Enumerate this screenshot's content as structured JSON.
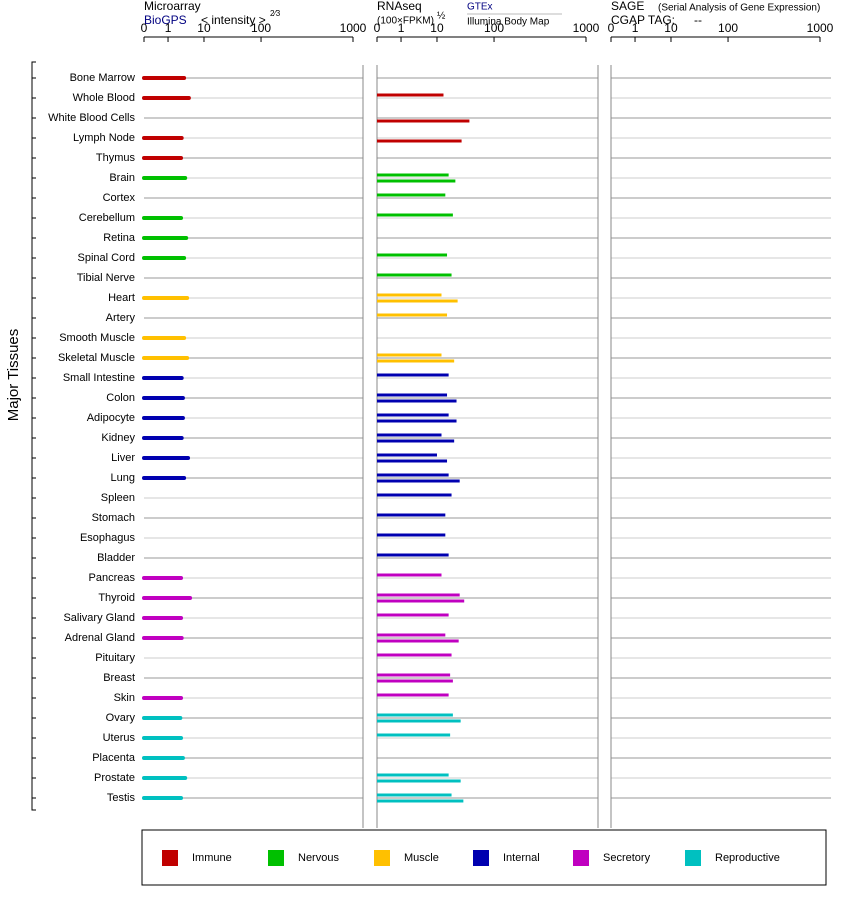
{
  "chart_data": {
    "type": "bar",
    "orientation": "horizontal",
    "y_label": "Major Tissues",
    "groups": [
      {
        "name": "Immune",
        "color": "#c00000",
        "categories": [
          "Bone Marrow",
          "Whole Blood",
          "White Blood Cells",
          "Lymph Node",
          "Thymus"
        ]
      },
      {
        "name": "Nervous",
        "color": "#00c000",
        "categories": [
          "Brain",
          "Cortex",
          "Cerebellum",
          "Retina",
          "Spinal Cord",
          "Tibial Nerve"
        ]
      },
      {
        "name": "Muscle",
        "color": "#ffc000",
        "categories": [
          "Heart",
          "Artery",
          "Smooth Muscle",
          "Skeletal Muscle"
        ]
      },
      {
        "name": "Internal",
        "color": "#0000b0",
        "categories": [
          "Small Intestine",
          "Colon",
          "Adipocyte",
          "Kidney",
          "Liver",
          "Lung",
          "Spleen",
          "Stomach",
          "Esophagus",
          "Bladder"
        ]
      },
      {
        "name": "Secretory",
        "color": "#c000c0",
        "categories": [
          "Pancreas",
          "Thyroid",
          "Salivary Gland",
          "Adrenal Gland",
          "Pituitary",
          "Breast",
          "Skin"
        ]
      },
      {
        "name": "Reproductive",
        "color": "#00c0c0",
        "categories": [
          "Ovary",
          "Uterus",
          "Placenta",
          "Prostate",
          "Testis"
        ]
      }
    ],
    "panels": [
      {
        "title": "Microarray",
        "x_label": "< intensity >",
        "x_label_exponent": "2⁄3",
        "xlim": [
          0,
          1000
        ],
        "xticks": [
          0,
          1,
          10,
          100,
          1000
        ],
        "series": [
          {
            "name": "BioGPS",
            "values": [
              2.8,
              3.8,
              null,
              2.4,
              2.3,
              3.0,
              null,
              2.3,
              3.2,
              2.8,
              null,
              3.4,
              null,
              2.8,
              3.4,
              2.4,
              2.6,
              2.6,
              2.4,
              3.6,
              2.8,
              null,
              null,
              null,
              null,
              2.3,
              4.1,
              2.3,
              2.4,
              null,
              null,
              2.3,
              2.2,
              2.3,
              2.6,
              3.0,
              2.3
            ]
          }
        ]
      },
      {
        "title": "RNAseq",
        "x_label": "(100×FPKM)",
        "x_label_exponent": "½",
        "xlim": [
          0,
          1000
        ],
        "xticks": [
          0,
          1,
          10,
          100,
          1000
        ],
        "series": [
          {
            "name": "GTEx",
            "values": [
              null,
              13,
              null,
              null,
              null,
              16,
              14,
              19,
              null,
              15,
              18,
              12,
              15,
              null,
              12,
              16,
              15,
              16,
              12,
              10,
              16,
              18,
              14,
              14,
              16,
              12,
              25,
              16,
              14,
              18,
              17,
              16,
              19,
              17,
              null,
              16,
              18
            ]
          },
          {
            "name": "Illumina Body Map",
            "values": [
              null,
              null,
              37,
              27,
              null,
              21,
              null,
              null,
              null,
              null,
              null,
              23,
              null,
              null,
              20,
              null,
              22,
              22,
              20,
              15,
              25,
              null,
              null,
              null,
              null,
              null,
              30,
              null,
              24,
              null,
              19,
              null,
              26,
              null,
              null,
              26,
              29
            ]
          }
        ]
      },
      {
        "title": "SAGE",
        "subtitle": "(Serial Analysis of Gene Expression)",
        "x_label": "CGAP TAG:",
        "tag": "--",
        "xlim": [
          0,
          1000
        ],
        "xticks": [
          0,
          1,
          10,
          100,
          1000
        ],
        "series": []
      }
    ]
  }
}
